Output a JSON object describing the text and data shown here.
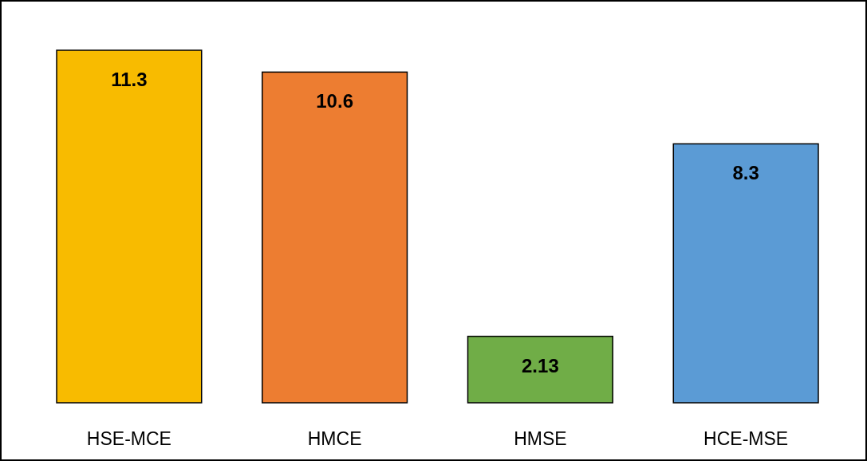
{
  "chart_data": {
    "type": "bar",
    "categories": [
      "HSE-MCE",
      "HMCE",
      "HMSE",
      "HCE-MSE"
    ],
    "values": [
      11.3,
      10.6,
      2.13,
      8.3
    ],
    "colors": [
      "#f8bb00",
      "#ed7d31",
      "#70ad47",
      "#5b9bd5"
    ],
    "data_labels": true
  }
}
